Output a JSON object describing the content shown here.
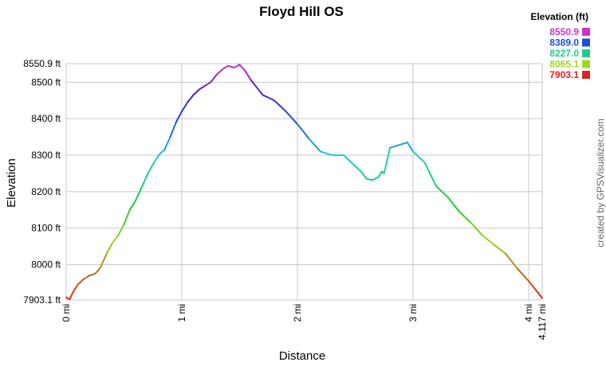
{
  "chart_data": {
    "type": "line",
    "title": "Floyd Hill OS",
    "xlabel": "Distance",
    "ylabel": "Elevation",
    "xlim": [
      0,
      4.117
    ],
    "ylim": [
      7903.1,
      8550.9
    ],
    "x_ticks": [
      {
        "value": 0,
        "label": "0 mi"
      },
      {
        "value": 1,
        "label": "1 mi"
      },
      {
        "value": 2,
        "label": "2 mi"
      },
      {
        "value": 3,
        "label": "3 mi"
      },
      {
        "value": 4,
        "label": "4 mi"
      },
      {
        "value": 4.117,
        "label": "4.117 mi"
      }
    ],
    "y_ticks": [
      {
        "value": 7903.1,
        "label": "7903.1 ft"
      },
      {
        "value": 8000,
        "label": "8000 ft"
      },
      {
        "value": 8100,
        "label": "8100 ft"
      },
      {
        "value": 8200,
        "label": "8200 ft"
      },
      {
        "value": 8300,
        "label": "8300 ft"
      },
      {
        "value": 8400,
        "label": "8400 ft"
      },
      {
        "value": 8500,
        "label": "8500 ft"
      },
      {
        "value": 8550.9,
        "label": "8550.9 ft"
      }
    ],
    "grid": true,
    "legend": {
      "title": "Elevation (ft)",
      "placement": "top-right",
      "entries": [
        {
          "label": "8550.9",
          "color": "#cc33cc"
        },
        {
          "label": "8389.0",
          "color": "#1f4fd8"
        },
        {
          "label": "8227.0",
          "color": "#22cc88"
        },
        {
          "label": "8065.1",
          "color": "#a0d820"
        },
        {
          "label": "7903.1",
          "color": "#dd2222"
        }
      ]
    },
    "colorscale": [
      {
        "value": 7903.1,
        "color": "#dd2222"
      },
      {
        "value": 7990,
        "color": "#b08020"
      },
      {
        "value": 8065.1,
        "color": "#a0d820"
      },
      {
        "value": 8150,
        "color": "#22cc22"
      },
      {
        "value": 8227.0,
        "color": "#22cc88"
      },
      {
        "value": 8300,
        "color": "#22cccc"
      },
      {
        "value": 8389.0,
        "color": "#1f4fd8"
      },
      {
        "value": 8470,
        "color": "#4422cc"
      },
      {
        "value": 8550.9,
        "color": "#cc33cc"
      }
    ],
    "series": [
      {
        "x": [
          0,
          0.03,
          0.06,
          0.1,
          0.15,
          0.2,
          0.25,
          0.28,
          0.3,
          0.35,
          0.4,
          0.45,
          0.5,
          0.55,
          0.6,
          0.65,
          0.7,
          0.75,
          0.8,
          0.85,
          0.9,
          0.95,
          1.0,
          1.05,
          1.1,
          1.15,
          1.2,
          1.25,
          1.3,
          1.35,
          1.4,
          1.45,
          1.5,
          1.55,
          1.6,
          1.7,
          1.8,
          1.9,
          2.0,
          2.1,
          2.2,
          2.3,
          2.4,
          2.5,
          2.55,
          2.6,
          2.65,
          2.7,
          2.73,
          2.75,
          2.8,
          2.85,
          2.9,
          2.95,
          3.0,
          3.1,
          3.2,
          3.3,
          3.4,
          3.5,
          3.6,
          3.7,
          3.8,
          3.9,
          4.0,
          4.05,
          4.1,
          4.117
        ],
        "values": [
          7910,
          7905,
          7925,
          7945,
          7960,
          7970,
          7975,
          7985,
          7995,
          8030,
          8060,
          8080,
          8110,
          8150,
          8175,
          8210,
          8245,
          8275,
          8300,
          8315,
          8350,
          8390,
          8420,
          8445,
          8465,
          8480,
          8490,
          8500,
          8520,
          8535,
          8545,
          8540,
          8548,
          8530,
          8505,
          8465,
          8450,
          8420,
          8385,
          8345,
          8310,
          8300,
          8300,
          8270,
          8255,
          8235,
          8232,
          8240,
          8255,
          8250,
          8320,
          8325,
          8330,
          8335,
          8310,
          8280,
          8215,
          8185,
          8145,
          8115,
          8080,
          8055,
          8030,
          7990,
          7955,
          7935,
          7915,
          7908
        ]
      }
    ]
  },
  "credit": "created by GPSVisualizer.com"
}
